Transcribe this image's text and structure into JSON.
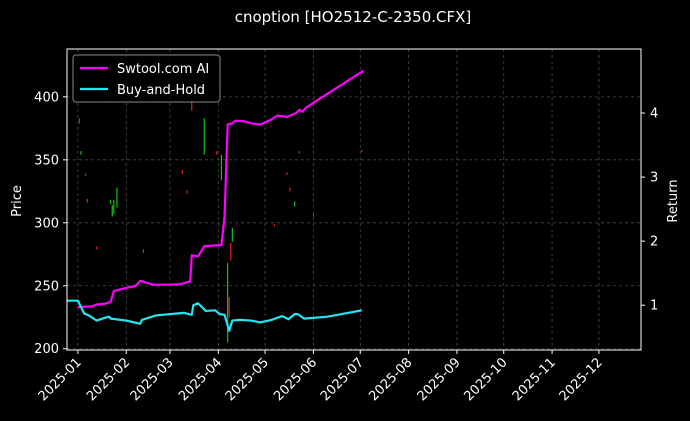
{
  "chart_data": {
    "type": "line",
    "title": "cnoption [HO2512-C-2350.CFX]",
    "xlabel": "",
    "ylabel": "Price",
    "y2label": "Return",
    "grid": true,
    "legend_position": "top-left",
    "xlim": [
      "2024-12-25",
      "2025-12-28"
    ],
    "ylim": [
      199,
      438
    ],
    "y2lim": [
      0.3,
      5.0
    ],
    "x_ticks": [
      "2025-01",
      "2025-02",
      "2025-03",
      "2025-04",
      "2025-05",
      "2025-06",
      "2025-07",
      "2025-08",
      "2025-09",
      "2025-10",
      "2025-11",
      "2025-12"
    ],
    "y_ticks": [
      200,
      250,
      300,
      350,
      400
    ],
    "y2_ticks": [
      1,
      2,
      3,
      4
    ],
    "series": [
      {
        "name": "Swtool.com AI",
        "axis": "right",
        "color": "#ff00ff",
        "points": [
          [
            "2025-01-01",
            0.97
          ],
          [
            "2025-01-10",
            0.98
          ],
          [
            "2025-01-13",
            1.01
          ],
          [
            "2025-01-18",
            1.02
          ],
          [
            "2025-01-22",
            1.05
          ],
          [
            "2025-01-24",
            1.22
          ],
          [
            "2025-02-01",
            1.27
          ],
          [
            "2025-02-07",
            1.3
          ],
          [
            "2025-02-10",
            1.38
          ],
          [
            "2025-02-18",
            1.32
          ],
          [
            "2025-03-01",
            1.32
          ],
          [
            "2025-03-08",
            1.33
          ],
          [
            "2025-03-14",
            1.37
          ],
          [
            "2025-03-15",
            1.78
          ],
          [
            "2025-03-19",
            1.76
          ],
          [
            "2025-03-23",
            1.92
          ],
          [
            "2025-03-28",
            1.93
          ],
          [
            "2025-04-03",
            1.94
          ],
          [
            "2025-04-05",
            2.37
          ],
          [
            "2025-04-07",
            3.82
          ],
          [
            "2025-04-10",
            3.84
          ],
          [
            "2025-04-12",
            3.88
          ],
          [
            "2025-04-18",
            3.87
          ],
          [
            "2025-04-22",
            3.84
          ],
          [
            "2025-04-28",
            3.82
          ],
          [
            "2025-05-05",
            3.9
          ],
          [
            "2025-05-09",
            3.96
          ],
          [
            "2025-05-15",
            3.94
          ],
          [
            "2025-05-21",
            4.0
          ],
          [
            "2025-05-23",
            4.05
          ],
          [
            "2025-05-25",
            4.02
          ],
          [
            "2025-05-27",
            4.08
          ],
          [
            "2025-06-01",
            4.16
          ],
          [
            "2025-07-03",
            4.66
          ]
        ]
      },
      {
        "name": "Buy-and-Hold",
        "axis": "right",
        "color": "#22e6f0",
        "points": [
          [
            "2024-12-25",
            1.07
          ],
          [
            "2025-01-01",
            1.07
          ],
          [
            "2025-01-05",
            0.87
          ],
          [
            "2025-01-08",
            0.84
          ],
          [
            "2025-01-13",
            0.76
          ],
          [
            "2025-01-18",
            0.8
          ],
          [
            "2025-01-21",
            0.82
          ],
          [
            "2025-01-22",
            0.79
          ],
          [
            "2025-02-01",
            0.76
          ],
          [
            "2025-02-10",
            0.71
          ],
          [
            "2025-02-11",
            0.77
          ],
          [
            "2025-02-20",
            0.84
          ],
          [
            "2025-03-01",
            0.86
          ],
          [
            "2025-03-10",
            0.88
          ],
          [
            "2025-03-15",
            0.85
          ],
          [
            "2025-03-16",
            1.0
          ],
          [
            "2025-03-19",
            1.03
          ],
          [
            "2025-03-24",
            0.91
          ],
          [
            "2025-03-30",
            0.92
          ],
          [
            "2025-04-02",
            0.86
          ],
          [
            "2025-04-05",
            0.85
          ],
          [
            "2025-04-08",
            0.6
          ],
          [
            "2025-04-10",
            0.76
          ],
          [
            "2025-04-15",
            0.77
          ],
          [
            "2025-04-22",
            0.76
          ],
          [
            "2025-04-28",
            0.73
          ],
          [
            "2025-05-05",
            0.77
          ],
          [
            "2025-05-12",
            0.83
          ],
          [
            "2025-05-16",
            0.78
          ],
          [
            "2025-05-20",
            0.86
          ],
          [
            "2025-05-22",
            0.86
          ],
          [
            "2025-05-26",
            0.79
          ],
          [
            "2025-06-10",
            0.82
          ],
          [
            "2025-07-02",
            0.92
          ]
        ]
      }
    ],
    "candles": [
      {
        "date": "2025-01-02",
        "low": 379,
        "high": 383,
        "color": "#e32020"
      },
      {
        "date": "2025-01-03",
        "low": 354,
        "high": 357,
        "color": "#19c219"
      },
      {
        "date": "2025-01-06",
        "low": 337,
        "high": 339,
        "color": "#e32020"
      },
      {
        "date": "2025-01-07",
        "low": 316,
        "high": 319,
        "color": "#e32020"
      },
      {
        "date": "2025-01-13",
        "low": 279,
        "high": 281,
        "color": "#e32020"
      },
      {
        "date": "2025-01-22",
        "low": 315,
        "high": 318,
        "color": "#19c219"
      },
      {
        "date": "2025-01-23",
        "low": 305,
        "high": 314,
        "color": "#19c219"
      },
      {
        "date": "2025-01-24",
        "low": 307,
        "high": 318,
        "color": "#19c219"
      },
      {
        "date": "2025-01-26",
        "low": 312,
        "high": 328,
        "color": "#19c219"
      },
      {
        "date": "2025-02-12",
        "low": 276,
        "high": 279,
        "color": "#e32020"
      },
      {
        "date": "2025-03-09",
        "low": 339,
        "high": 342,
        "color": "#e32020"
      },
      {
        "date": "2025-03-12",
        "low": 323,
        "high": 326,
        "color": "#e32020"
      },
      {
        "date": "2025-03-15",
        "low": 389,
        "high": 398,
        "color": "#e32020"
      },
      {
        "date": "2025-03-23",
        "low": 354,
        "high": 383,
        "color": "#19c219"
      },
      {
        "date": "2025-03-31",
        "low": 354,
        "high": 357,
        "color": "#e32020"
      },
      {
        "date": "2025-04-03",
        "low": 334,
        "high": 354,
        "color": "#19c219"
      },
      {
        "date": "2025-04-07",
        "low": 205,
        "high": 268,
        "color": "#19c219"
      },
      {
        "date": "2025-04-08",
        "low": 225,
        "high": 241,
        "color": "#e32020"
      },
      {
        "date": "2025-04-09",
        "low": 270,
        "high": 284,
        "color": "#e32020"
      },
      {
        "date": "2025-04-10",
        "low": 285,
        "high": 296,
        "color": "#19c219"
      },
      {
        "date": "2025-05-07",
        "low": 297,
        "high": 299,
        "color": "#e32020"
      },
      {
        "date": "2025-05-15",
        "low": 338,
        "high": 340,
        "color": "#e32020"
      },
      {
        "date": "2025-05-17",
        "low": 325,
        "high": 328,
        "color": "#e32020"
      },
      {
        "date": "2025-05-20",
        "low": 313,
        "high": 317,
        "color": "#19c219"
      },
      {
        "date": "2025-05-23",
        "low": 355,
        "high": 357,
        "color": "#e32020"
      },
      {
        "date": "2025-06-01",
        "low": 305,
        "high": 307,
        "color": "#e32020"
      },
      {
        "date": "2025-07-02",
        "low": 356,
        "high": 358,
        "color": "#e32020"
      }
    ]
  }
}
